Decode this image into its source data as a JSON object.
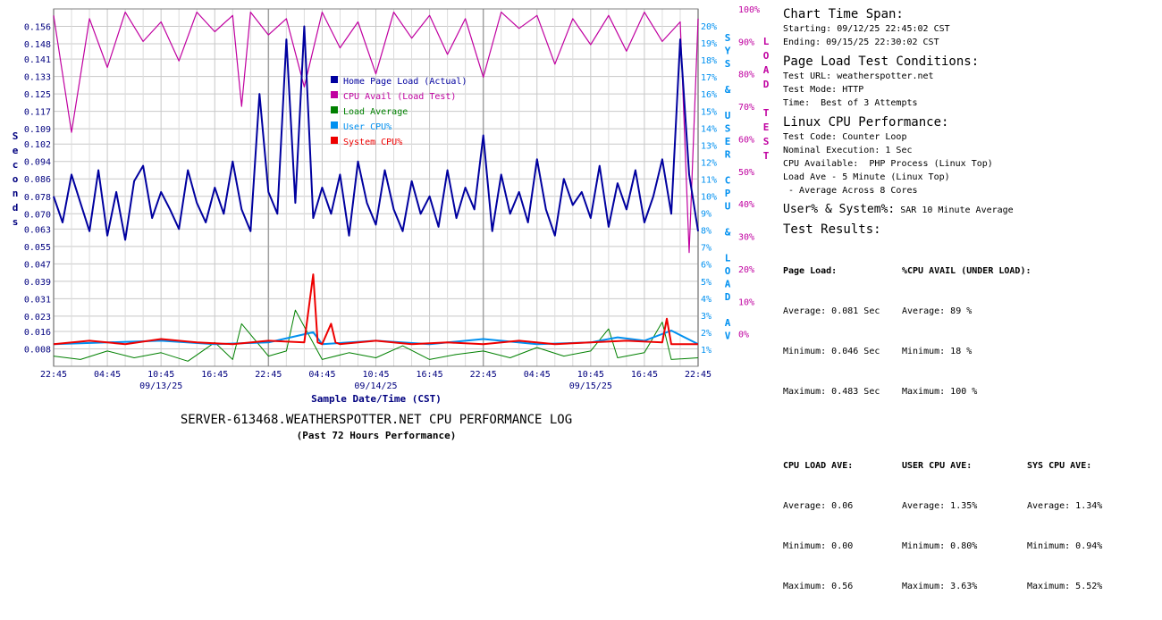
{
  "chart_data": {
    "type": "line",
    "title": "SERVER-613468.WEATHERSPOTTER.NET CPU PERFORMANCE LOG",
    "subtitle": "(Past 72 Hours Performance)",
    "xlabel": "Sample Date/Time (CST)",
    "ylabel_left": "Seconds",
    "ylabel_right_inner": "SYS & USER CPU & LOAD AV",
    "ylabel_right_outer": "LOAD TEST",
    "x_ticks": [
      "22:45",
      "04:45",
      "10:45",
      "16:45",
      "22:45",
      "04:45",
      "10:45",
      "16:45",
      "22:45",
      "04:45",
      "10:45",
      "16:45",
      "22:45"
    ],
    "x_date_labels": [
      {
        "label": "09/13/25",
        "at_tick": 2
      },
      {
        "label": "09/14/25",
        "at_tick": 6
      },
      {
        "label": "09/15/25",
        "at_tick": 10
      }
    ],
    "y_left_ticks": [
      "0.156",
      "0.148",
      "0.141",
      "0.133",
      "0.125",
      "0.117",
      "0.109",
      "0.102",
      "0.094",
      "0.086",
      "0.078",
      "0.070",
      "0.063",
      "0.055",
      "0.047",
      "0.039",
      "0.031",
      "0.023",
      "0.016",
      "0.008"
    ],
    "y_left_range": [
      0,
      0.164
    ],
    "y_right_ticks": [
      "20%",
      "19%",
      "18%",
      "17%",
      "16%",
      "15%",
      "14%",
      "13%",
      "12%",
      "11%",
      "10%",
      "9%",
      "8%",
      "7%",
      "6%",
      "5%",
      "4%",
      "3%",
      "2%",
      "1%"
    ],
    "y_right_range": [
      0,
      21
    ],
    "y_load_ticks": [
      "100%",
      "90%",
      "80%",
      "70%",
      "60%",
      "50%",
      "40%",
      "30%",
      "20%",
      "10%",
      "0%"
    ],
    "y_load_range": [
      -10,
      100
    ],
    "x_range_hours": [
      0,
      72
    ],
    "grid": true,
    "legend_position": "top-center",
    "series": [
      {
        "name": "Home Page Load (Actual)",
        "color": "#00009f",
        "axis": "left",
        "hours": [
          0,
          1,
          2,
          3,
          4,
          5,
          6,
          7,
          8,
          9,
          10,
          11,
          12,
          13,
          14,
          15,
          16,
          17,
          18,
          19,
          20,
          21,
          22,
          23,
          24,
          25,
          26,
          27,
          28,
          29,
          30,
          31,
          32,
          33,
          34,
          35,
          36,
          37,
          38,
          39,
          40,
          41,
          42,
          43,
          44,
          45,
          46,
          47,
          48,
          49,
          50,
          51,
          52,
          53,
          54,
          55,
          56,
          57,
          58,
          59,
          60,
          61,
          62,
          63,
          64,
          65,
          66,
          67,
          68,
          69,
          70,
          71,
          72
        ],
        "values": [
          0.078,
          0.066,
          0.088,
          0.075,
          0.062,
          0.09,
          0.06,
          0.08,
          0.058,
          0.085,
          0.092,
          0.068,
          0.08,
          0.072,
          0.063,
          0.09,
          0.075,
          0.066,
          0.082,
          0.07,
          0.094,
          0.072,
          0.062,
          0.125,
          0.08,
          0.07,
          0.15,
          0.075,
          0.156,
          0.068,
          0.082,
          0.07,
          0.088,
          0.06,
          0.094,
          0.075,
          0.065,
          0.09,
          0.072,
          0.062,
          0.085,
          0.07,
          0.078,
          0.064,
          0.09,
          0.068,
          0.082,
          0.072,
          0.106,
          0.062,
          0.088,
          0.07,
          0.08,
          0.066,
          0.095,
          0.072,
          0.06,
          0.086,
          0.074,
          0.08,
          0.068,
          0.092,
          0.064,
          0.084,
          0.072,
          0.09,
          0.066,
          0.078,
          0.095,
          0.07,
          0.15,
          0.088,
          0.062
        ]
      },
      {
        "name": "CPU Avail (Load Test)",
        "color": "#c000a0",
        "axis": "load",
        "hours": [
          0,
          2,
          4,
          6,
          8,
          10,
          12,
          14,
          16,
          18,
          20,
          21,
          22,
          24,
          26,
          28,
          30,
          32,
          34,
          36,
          38,
          40,
          42,
          44,
          46,
          48,
          50,
          52,
          54,
          56,
          58,
          60,
          62,
          64,
          66,
          68,
          70,
          71,
          72
        ],
        "values": [
          98,
          62,
          97,
          82,
          99,
          90,
          96,
          84,
          99,
          93,
          98,
          70,
          99,
          92,
          97,
          76,
          99,
          88,
          96,
          80,
          99,
          91,
          98,
          86,
          97,
          79,
          99,
          94,
          98,
          83,
          97,
          89,
          98,
          87,
          99,
          90,
          96,
          25,
          97
        ]
      },
      {
        "name": "Load Average",
        "color": "#008000",
        "axis": "right",
        "hours": [
          0,
          3,
          6,
          9,
          12,
          15,
          18,
          20,
          21,
          24,
          26,
          27,
          30,
          33,
          36,
          39,
          42,
          45,
          48,
          51,
          54,
          57,
          60,
          62,
          63,
          66,
          68,
          69,
          72
        ],
        "values": [
          0.6,
          0.4,
          0.9,
          0.5,
          0.8,
          0.3,
          1.4,
          0.4,
          2.5,
          0.6,
          0.9,
          3.3,
          0.4,
          0.8,
          0.5,
          1.2,
          0.4,
          0.7,
          0.9,
          0.5,
          1.1,
          0.6,
          0.9,
          2.2,
          0.5,
          0.8,
          2.6,
          0.4,
          0.5
        ]
      },
      {
        "name": "User CPU%",
        "color": "#0090f0",
        "axis": "right",
        "hours": [
          0,
          6,
          12,
          18,
          24,
          29,
          30,
          36,
          42,
          48,
          54,
          60,
          63,
          66,
          69,
          72
        ],
        "values": [
          1.3,
          1.4,
          1.5,
          1.3,
          1.4,
          2.0,
          1.3,
          1.5,
          1.3,
          1.6,
          1.3,
          1.4,
          1.7,
          1.5,
          2.1,
          1.3
        ]
      },
      {
        "name": "System CPU%",
        "color": "#ee0000",
        "axis": "right",
        "hours": [
          0,
          4,
          8,
          12,
          16,
          20,
          24,
          28,
          29,
          29.5,
          30,
          31,
          31.5,
          32,
          36,
          40,
          44,
          48,
          52,
          56,
          60,
          64,
          68,
          68.5,
          69,
          72
        ],
        "values": [
          1.3,
          1.5,
          1.3,
          1.6,
          1.4,
          1.3,
          1.5,
          1.4,
          5.4,
          1.4,
          1.3,
          2.5,
          1.4,
          1.3,
          1.5,
          1.3,
          1.4,
          1.3,
          1.5,
          1.3,
          1.4,
          1.5,
          1.4,
          2.8,
          1.3,
          1.3
        ]
      }
    ]
  },
  "info": {
    "span_title": "Chart Time Span:",
    "starting": "Starting: 09/12/25 22:45:02 CST",
    "ending": "Ending: 09/15/25 22:30:02 CST",
    "page_load_title": "Page Load Test Conditions:",
    "test_url": "Test URL: weatherspotter.net",
    "test_mode": "Test Mode: HTTP",
    "time": "Time:  Best of 3 Attempts",
    "linux_title": "Linux CPU Performance:",
    "test_code": "Test Code: Counter Loop",
    "nominal": "Nominal Execution: 1 Sec",
    "cpu_avail": "CPU Available:  PHP Process (Linux Top)",
    "load_ave": "Load Ave - 5 Minute (Linux Top)",
    "avg_cores": " - Average Across 8 Cores",
    "user_sys_label": "User% & System%:",
    "user_sys_value": " SAR 10 Minute Average",
    "results_title": "Test Results:",
    "page_load_hd": "Page Load:",
    "pl_avg": "Average: 0.081 Sec",
    "pl_min": "Minimum: 0.046 Sec",
    "pl_max": "Maximum: 0.483 Sec",
    "cpu_avail_hd": "%CPU AVAIL (UNDER LOAD):",
    "ca_avg": "Average: 89 %",
    "ca_min": "Minimum: 18 %",
    "ca_max": "Maximum: 100 %",
    "cpu_load_hd": "CPU LOAD AVE:",
    "cl_avg": "Average: 0.06",
    "cl_min": "Minimum: 0.00",
    "cl_max": "Maximum: 0.56",
    "user_cpu_hd": "USER CPU AVE:",
    "uc_avg": "Average: 1.35%",
    "uc_min": "Minimum: 0.80%",
    "uc_max": "Maximum: 3.63%",
    "sys_cpu_hd": "SYS CPU AVE:",
    "sc_avg": "Average: 1.34%",
    "sc_min": "Minimum: 0.94%",
    "sc_max": "Maximum: 5.52%"
  }
}
